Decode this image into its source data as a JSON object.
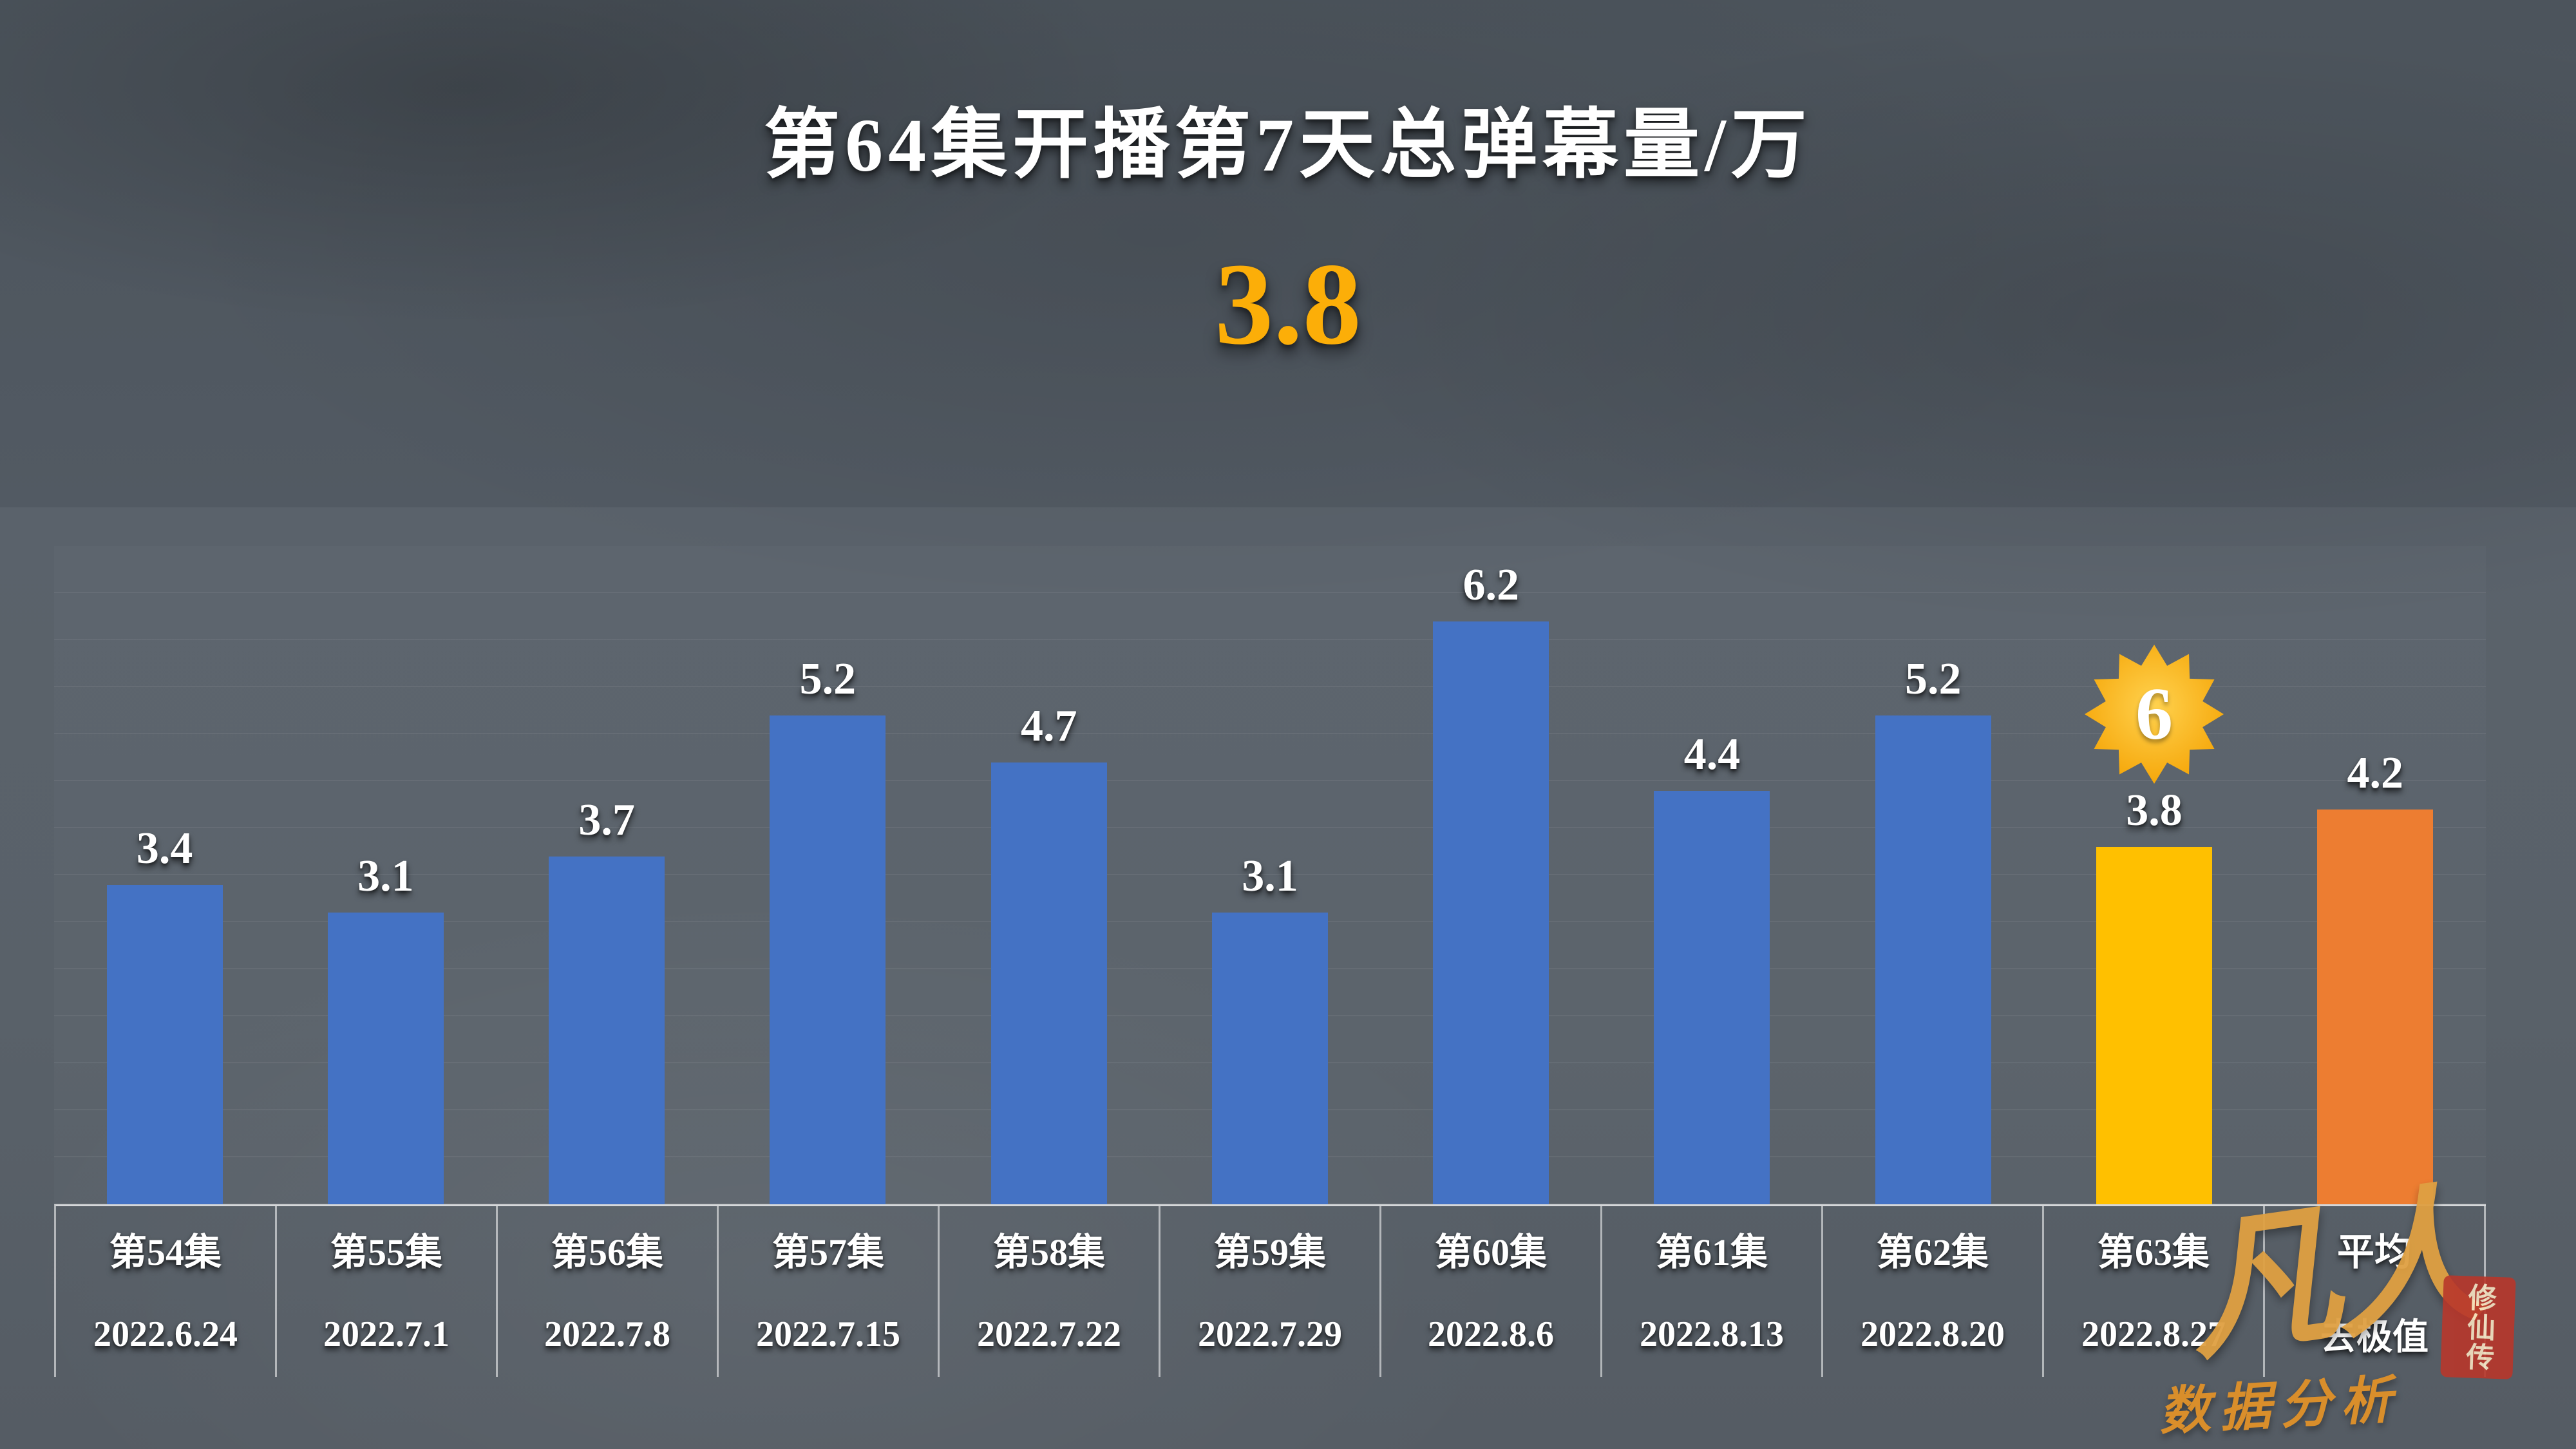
{
  "title": "第64集开播第7天总弹幕量/万",
  "highlight": {
    "value": "3.8"
  },
  "chart_data": {
    "type": "bar",
    "title": "第64集开播第7天总弹幕量/万",
    "categories": [
      "第54集",
      "第55集",
      "第56集",
      "第57集",
      "第58集",
      "第59集",
      "第60集",
      "第61集",
      "第62集",
      "第63集",
      "平均"
    ],
    "sub_labels": [
      "2022.6.24",
      "2022.7.1",
      "2022.7.8",
      "2022.7.15",
      "2022.7.22",
      "2022.7.29",
      "2022.8.6",
      "2022.8.13",
      "2022.8.20",
      "2022.8.27",
      "去极值"
    ],
    "values": [
      3.4,
      3.1,
      3.7,
      5.2,
      4.7,
      3.1,
      6.2,
      4.4,
      5.2,
      3.8,
      4.2
    ],
    "bar_roles": [
      "default",
      "default",
      "default",
      "default",
      "default",
      "default",
      "default",
      "default",
      "default",
      "highlight",
      "average"
    ],
    "colors": {
      "default": "#4472C4",
      "highlight": "#FFC000",
      "average": "#ED7D31",
      "value_label": "#FFFFFF",
      "big_number_gold": "#FCAE08",
      "badge_gold": "#F6A90D"
    },
    "badge": {
      "text": "6",
      "index": 9
    },
    "ylim": [
      0,
      7
    ],
    "grid": true,
    "legend": false,
    "xlabel": "",
    "ylabel": "总弹幕量/万"
  },
  "watermark": {
    "script_text": "凡人",
    "seal_text": "修仙传",
    "caption": "数据分析"
  }
}
